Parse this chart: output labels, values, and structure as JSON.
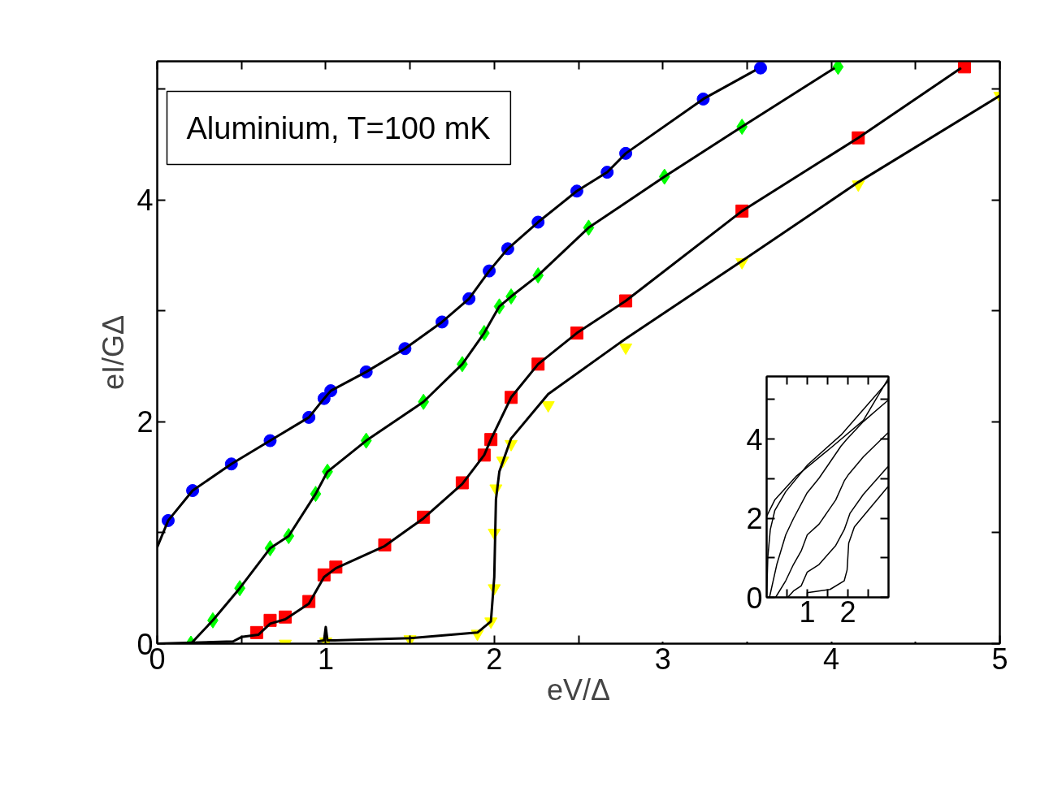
{
  "chart_data": [
    {
      "type": "scatter",
      "xlabel": "eV/Δ",
      "ylabel": "eI/GΔ",
      "annotations": [
        "Aluminium, T=100 mK"
      ],
      "xlim": [
        0,
        5
      ],
      "ylim": [
        0,
        5.25
      ],
      "xticks": [
        0,
        {
          "value": 0.5,
          "label": null
        },
        1,
        {
          "value": 1.5,
          "label": null
        },
        2,
        {
          "value": 2.5,
          "label": null
        },
        3,
        {
          "value": 3.5,
          "label": null
        },
        4,
        {
          "value": 4.5,
          "label": null
        },
        5
      ],
      "yticks": [
        0,
        {
          "value": 1,
          "label": null
        },
        2,
        {
          "value": 3,
          "label": null
        },
        4,
        {
          "value": 5,
          "label": null
        }
      ],
      "grid": false,
      "series": [
        {
          "type": "scatter",
          "marker": "circle",
          "color": "#0000ff",
          "x": [
            0.065,
            0.21,
            0.44,
            0.67,
            0.9,
            0.99,
            1.03,
            1.24,
            1.47,
            1.69,
            1.85,
            1.97,
            2.08,
            2.26,
            2.49,
            2.67,
            2.78,
            3.24,
            3.58
          ],
          "values": [
            1.11,
            1.38,
            1.62,
            1.83,
            2.04,
            2.21,
            2.28,
            2.45,
            2.66,
            2.9,
            3.11,
            3.36,
            3.56,
            3.8,
            4.08,
            4.25,
            4.42,
            4.91,
            5.19
          ]
        },
        {
          "type": "scatter",
          "marker": "diamond",
          "color": "#00ff00",
          "x": [
            0.2,
            0.33,
            0.49,
            0.67,
            0.78,
            0.94,
            1.01,
            1.24,
            1.58,
            1.81,
            1.94,
            2.03,
            2.1,
            2.26,
            2.56,
            3.01,
            3.47,
            4.04
          ],
          "values": [
            0,
            0.21,
            0.5,
            0.86,
            0.97,
            1.35,
            1.55,
            1.83,
            2.18,
            2.52,
            2.8,
            3.04,
            3.13,
            3.32,
            3.75,
            4.21,
            4.66,
            5.2
          ]
        },
        {
          "type": "scatter",
          "marker": "square",
          "color": "#ff0000",
          "x": [
            0.59,
            0.67,
            0.76,
            0.9,
            0.99,
            1.06,
            1.35,
            1.58,
            1.81,
            1.94,
            1.98,
            2.1,
            2.26,
            2.49,
            2.78,
            3.47,
            4.16,
            4.79
          ],
          "values": [
            0.1,
            0.21,
            0.24,
            0.38,
            0.62,
            0.69,
            0.89,
            1.14,
            1.45,
            1.7,
            1.84,
            2.22,
            2.52,
            2.8,
            3.09,
            3.9,
            4.56,
            5.2
          ]
        },
        {
          "type": "scatter",
          "marker": "triangle",
          "color": "#ffff00",
          "x": [
            0.76,
            1.0,
            1.5,
            1.9,
            1.98,
            2.0,
            2.0,
            2.01,
            2.05,
            2.1,
            2.32,
            2.78,
            3.47,
            4.16,
            5.0
          ],
          "values": [
            0,
            0.02,
            0.04,
            0.09,
            0.2,
            0.5,
            1.0,
            1.4,
            1.65,
            1.8,
            2.15,
            2.67,
            3.44,
            4.14,
            4.94
          ]
        },
        {
          "type": "line",
          "color": "#000000",
          "x": [
            0,
            0.065,
            0.21,
            0.44,
            0.67,
            0.9,
            0.99,
            1.03,
            1.24,
            1.47,
            1.69,
            1.85,
            1.97,
            2.08,
            2.26,
            2.49,
            2.67,
            2.78,
            3.24,
            3.55
          ],
          "values": [
            0.87,
            1.11,
            1.38,
            1.62,
            1.83,
            2.04,
            2.21,
            2.28,
            2.45,
            2.66,
            2.9,
            3.11,
            3.36,
            3.56,
            3.8,
            4.08,
            4.25,
            4.42,
            4.91,
            5.17
          ]
        },
        {
          "type": "line",
          "color": "#000000",
          "x": [
            0,
            0.2,
            0.33,
            0.49,
            0.67,
            0.78,
            0.94,
            1.01,
            1.24,
            1.58,
            1.81,
            1.94,
            2.03,
            2.1,
            2.26,
            2.56,
            3.01,
            3.47,
            4.02
          ],
          "values": [
            0,
            0,
            0.21,
            0.5,
            0.86,
            0.97,
            1.35,
            1.55,
            1.83,
            2.18,
            2.52,
            2.8,
            3.04,
            3.13,
            3.32,
            3.75,
            4.21,
            4.66,
            5.19
          ]
        },
        {
          "type": "line",
          "color": "#000000",
          "x": [
            0,
            0.45,
            0.5,
            0.6,
            0.67,
            0.76,
            0.9,
            0.99,
            1.06,
            1.35,
            1.58,
            1.81,
            1.94,
            1.98,
            2.1,
            2.26,
            2.49,
            2.78,
            3.47,
            4.16,
            4.77
          ],
          "values": [
            0,
            0.02,
            0.06,
            0.08,
            0.18,
            0.22,
            0.36,
            0.6,
            0.68,
            0.88,
            1.13,
            1.44,
            1.7,
            1.84,
            2.22,
            2.52,
            2.8,
            3.09,
            3.9,
            4.56,
            5.19
          ]
        },
        {
          "type": "line",
          "color": "#000000",
          "x": [
            0.95,
            0.99,
            1.0,
            1.01,
            1.05,
            1.5,
            1.9,
            1.98,
            2.0,
            2.01,
            2.03,
            2.1,
            2.32,
            2.78,
            3.47,
            4.16,
            5.0
          ],
          "values": [
            0.02,
            0.03,
            0.15,
            0.03,
            0.03,
            0.05,
            0.1,
            0.2,
            0.6,
            1.3,
            1.55,
            1.85,
            2.25,
            2.75,
            3.45,
            4.16,
            4.94
          ]
        }
      ]
    },
    {
      "type": "line",
      "xlim": [
        0,
        3
      ],
      "ylim": [
        0,
        5.58
      ],
      "xticks": [
        {
          "value": 0.5,
          "label": null
        },
        1,
        {
          "value": 1.5,
          "label": null
        },
        2,
        {
          "value": 2.5,
          "label": null
        }
      ],
      "yticks": [
        0,
        {
          "value": 1,
          "label": null
        },
        2,
        {
          "value": 3,
          "label": null
        },
        4,
        {
          "value": 5,
          "label": null
        }
      ],
      "grid": false,
      "series": [
        {
          "color": "#000000",
          "x": [
            0,
            0.2,
            0.74,
            1.56,
            2.38,
            2.99
          ],
          "values": [
            2.05,
            2.46,
            3.07,
            3.76,
            4.47,
            5.52
          ]
        },
        {
          "color": "#000000",
          "x": [
            0,
            0.03,
            0.09,
            0.2,
            0.47,
            1.01,
            1.83,
            2.99
          ],
          "values": [
            0,
            1.03,
            1.71,
            2.19,
            2.67,
            3.35,
            4.1,
            5.46
          ]
        },
        {
          "color": "#000000",
          "x": [
            0.07,
            0.25,
            0.47,
            0.66,
            0.99,
            1.29,
            1.83,
            1.97,
            2.38,
            2.99
          ],
          "values": [
            0,
            0.83,
            1.58,
            1.99,
            2.63,
            3.01,
            3.82,
            3.99,
            4.44,
            4.98
          ]
        },
        {
          "color": "#000000",
          "x": [
            0.22,
            0.47,
            0.66,
            0.85,
            1.0,
            1.29,
            1.7,
            1.91,
            2.02,
            2.38,
            2.99
          ],
          "values": [
            0,
            0.42,
            0.83,
            1.17,
            1.58,
            1.85,
            2.46,
            2.94,
            3.11,
            3.55,
            4.16
          ]
        },
        {
          "color": "#000000",
          "x": [
            0.52,
            0.66,
            0.85,
            1.0,
            1.29,
            1.7,
            1.91,
            2.05,
            2.38,
            2.99
          ],
          "values": [
            0,
            0.16,
            0.29,
            0.64,
            0.83,
            1.31,
            1.71,
            2.12,
            2.6,
            3.31
          ]
        },
        {
          "color": "#000000",
          "x": [
            1.0,
            1.0,
            1.56,
            1.91,
            1.98,
            2.02,
            2.16,
            2.38,
            2.99
          ],
          "values": [
            0,
            0.12,
            0.2,
            0.42,
            0.69,
            1.37,
            1.78,
            2.05,
            2.8
          ]
        }
      ]
    }
  ]
}
